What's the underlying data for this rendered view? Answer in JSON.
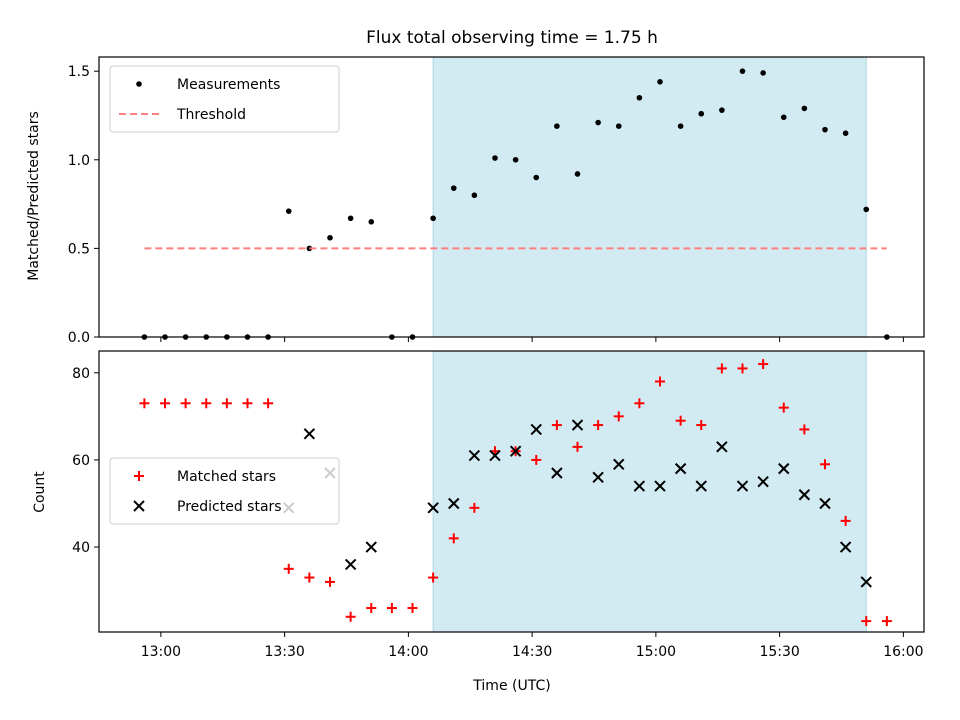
{
  "colors": {
    "measurement": "#000000",
    "threshold": "#ff7f7f",
    "shade": "#add8e6",
    "matched": "#ff0000",
    "predicted": "#000000"
  },
  "chart_data": [
    {
      "type": "scatter",
      "title": "Flux total observing time = 1.75 h",
      "xlabel": "",
      "ylabel": "Matched/Predicted stars",
      "xlim": [
        "12:45",
        "16:05"
      ],
      "ylim": [
        0,
        1.58
      ],
      "yticks": [
        "0.0",
        "0.5",
        "1.0",
        "1.5"
      ],
      "ytick_values": [
        0,
        0.5,
        1.0,
        1.5
      ],
      "grid": false,
      "legend_position": "upper-left",
      "shaded_span": [
        "14:06",
        "15:51"
      ],
      "series": [
        {
          "name": "Measurements",
          "marker": "dot",
          "x": [
            "12:56",
            "13:01",
            "13:06",
            "13:11",
            "13:16",
            "13:21",
            "13:26",
            "13:31",
            "13:36",
            "13:41",
            "13:46",
            "13:51",
            "13:56",
            "14:01",
            "14:06",
            "14:11",
            "14:16",
            "14:21",
            "14:26",
            "14:31",
            "14:36",
            "14:41",
            "14:46",
            "14:51",
            "14:56",
            "15:01",
            "15:06",
            "15:11",
            "15:16",
            "15:21",
            "15:26",
            "15:31",
            "15:36",
            "15:41",
            "15:46",
            "15:51",
            "15:56"
          ],
          "y": [
            0,
            0,
            0,
            0,
            0,
            0,
            0,
            0.71,
            0.5,
            0.56,
            0.67,
            0.65,
            0,
            0,
            0.67,
            0.84,
            0.8,
            1.01,
            1.0,
            0.9,
            1.19,
            0.92,
            1.21,
            1.19,
            1.35,
            1.44,
            1.19,
            1.26,
            1.28,
            1.5,
            1.49,
            1.24,
            1.29,
            1.17,
            1.15,
            0.72,
            0
          ]
        },
        {
          "name": "Threshold",
          "style": "dashed",
          "x": [
            "12:56",
            "15:56"
          ],
          "y": [
            0.5,
            0.5
          ]
        }
      ]
    },
    {
      "type": "scatter",
      "title": "",
      "xlabel": "Time (UTC)",
      "ylabel": "Count",
      "xlim": [
        "12:45",
        "16:05"
      ],
      "ylim": [
        20.5,
        85
      ],
      "xticks": [
        "13:00",
        "13:30",
        "14:00",
        "14:30",
        "15:00",
        "15:30",
        "16:00"
      ],
      "yticks": [
        "40",
        "60",
        "80"
      ],
      "ytick_values": [
        40,
        60,
        80
      ],
      "grid": false,
      "legend_position": "center-left",
      "shaded_span": [
        "14:06",
        "15:51"
      ],
      "series": [
        {
          "name": "Matched stars",
          "marker": "plus",
          "x": [
            "12:56",
            "13:01",
            "13:06",
            "13:11",
            "13:16",
            "13:21",
            "13:26",
            "13:31",
            "13:36",
            "13:41",
            "13:46",
            "13:51",
            "13:56",
            "14:01",
            "14:06",
            "14:11",
            "14:16",
            "14:21",
            "14:26",
            "14:31",
            "14:36",
            "14:41",
            "14:46",
            "14:51",
            "14:56",
            "15:01",
            "15:06",
            "15:11",
            "15:16",
            "15:21",
            "15:26",
            "15:31",
            "15:36",
            "15:41",
            "15:46",
            "15:51",
            "15:56"
          ],
          "y": [
            73,
            73,
            73,
            73,
            73,
            73,
            73,
            35,
            33,
            32,
            24,
            26,
            26,
            26,
            33,
            42,
            49,
            62,
            62,
            60,
            68,
            63,
            68,
            70,
            73,
            78,
            69,
            68,
            81,
            81,
            82,
            72,
            67,
            59,
            46,
            23,
            23
          ]
        },
        {
          "name": "Predicted stars",
          "marker": "x",
          "x": [
            "13:31",
            "13:36",
            "13:41",
            "13:46",
            "13:51",
            "14:06",
            "14:11",
            "14:16",
            "14:21",
            "14:26",
            "14:31",
            "14:36",
            "14:41",
            "14:46",
            "14:51",
            "14:56",
            "15:01",
            "15:06",
            "15:11",
            "15:16",
            "15:21",
            "15:26",
            "15:31",
            "15:36",
            "15:41",
            "15:46",
            "15:51"
          ],
          "y": [
            49,
            66,
            57,
            36,
            40,
            49,
            50,
            61,
            61,
            62,
            67,
            57,
            68,
            56,
            59,
            54,
            54,
            58,
            54,
            63,
            54,
            55,
            58,
            52,
            50,
            40,
            32
          ]
        }
      ]
    }
  ]
}
